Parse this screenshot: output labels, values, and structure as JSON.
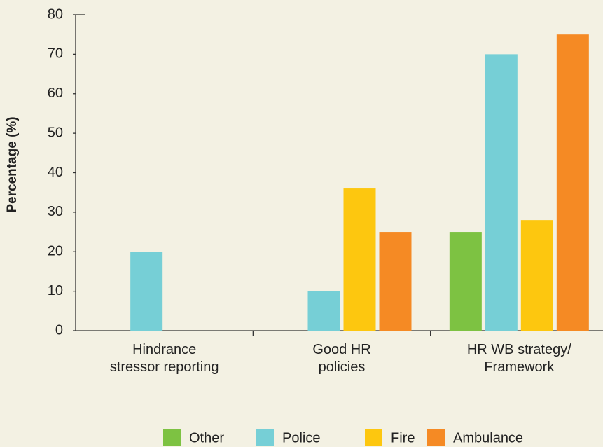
{
  "chart_data": {
    "type": "bar",
    "y_label": "Percentage (%)",
    "categories": [
      [
        "Hindrance",
        "stressor reporting"
      ],
      [
        "Good HR",
        "policies"
      ],
      [
        "HR WB strategy/",
        "Framework"
      ]
    ],
    "series": [
      {
        "name": "Other",
        "color": "#7dc242",
        "values": [
          0,
          0,
          25
        ]
      },
      {
        "name": "Police",
        "color": "#76cfd6",
        "values": [
          20,
          10,
          70
        ]
      },
      {
        "name": "Fire",
        "color": "#fdc70f",
        "values": [
          0,
          36,
          28
        ]
      },
      {
        "name": "Ambulance",
        "color": "#f58a24",
        "values": [
          0,
          25,
          75
        ]
      }
    ],
    "ylim": [
      0,
      80
    ],
    "yticks": [
      0,
      10,
      20,
      30,
      40,
      50,
      60,
      70,
      80
    ],
    "legend": "bottom"
  }
}
